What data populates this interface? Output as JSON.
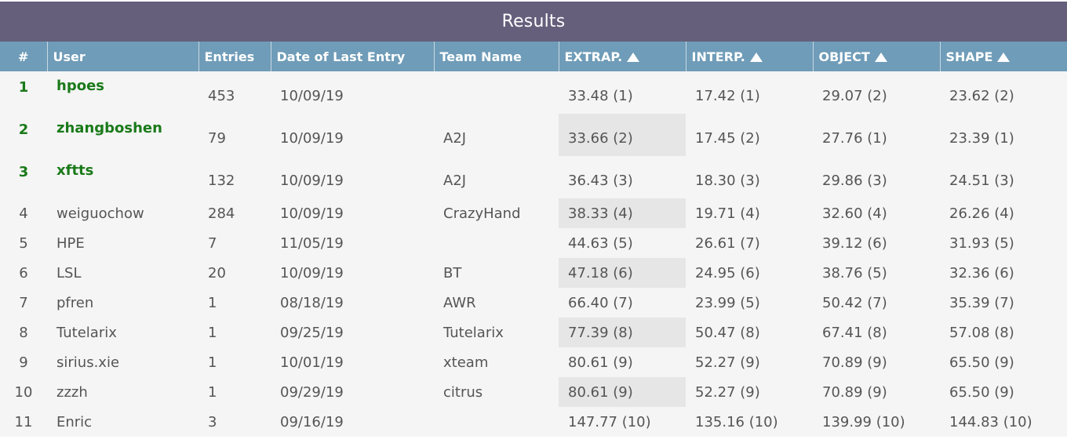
{
  "title": "Results",
  "columns": {
    "rank": "#",
    "user": "User",
    "entries": "Entries",
    "date": "Date of Last Entry",
    "team": "Team Name",
    "extrap": "EXTRAP.",
    "interp": "INTERP.",
    "object": "OBJECT",
    "shape": "SHAPE"
  },
  "rows": [
    {
      "rank": "1",
      "user": "hpoes",
      "entries": "453",
      "date": "10/09/19",
      "team": "",
      "extrap": "33.48 (1)",
      "interp": "17.42 (1)",
      "object": "29.07 (2)",
      "shape": "23.62 (2)",
      "top": true,
      "highlight_extrap": false
    },
    {
      "rank": "2",
      "user": "zhangboshen",
      "entries": "79",
      "date": "10/09/19",
      "team": "A2J",
      "extrap": "33.66 (2)",
      "interp": "17.45 (2)",
      "object": "27.76 (1)",
      "shape": "23.39 (1)",
      "top": true,
      "highlight_extrap": true
    },
    {
      "rank": "3",
      "user": "xftts",
      "entries": "132",
      "date": "10/09/19",
      "team": "A2J",
      "extrap": "36.43 (3)",
      "interp": "18.30 (3)",
      "object": "29.86 (3)",
      "shape": "24.51 (3)",
      "top": true,
      "highlight_extrap": false
    },
    {
      "rank": "4",
      "user": "weiguochow",
      "entries": "284",
      "date": "10/09/19",
      "team": "CrazyHand",
      "extrap": "38.33 (4)",
      "interp": "19.71 (4)",
      "object": "32.60 (4)",
      "shape": "26.26 (4)",
      "top": false,
      "highlight_extrap": true
    },
    {
      "rank": "5",
      "user": "HPE",
      "entries": "7",
      "date": "11/05/19",
      "team": "",
      "extrap": "44.63 (5)",
      "interp": "26.61 (7)",
      "object": "39.12 (6)",
      "shape": "31.93 (5)",
      "top": false,
      "highlight_extrap": false
    },
    {
      "rank": "6",
      "user": "LSL",
      "entries": "20",
      "date": "10/09/19",
      "team": "BT",
      "extrap": "47.18 (6)",
      "interp": "24.95 (6)",
      "object": "38.76 (5)",
      "shape": "32.36 (6)",
      "top": false,
      "highlight_extrap": true
    },
    {
      "rank": "7",
      "user": "pfren",
      "entries": "1",
      "date": "08/18/19",
      "team": "AWR",
      "extrap": "66.40 (7)",
      "interp": "23.99 (5)",
      "object": "50.42 (7)",
      "shape": "35.39 (7)",
      "top": false,
      "highlight_extrap": false
    },
    {
      "rank": "8",
      "user": "Tutelarix",
      "entries": "1",
      "date": "09/25/19",
      "team": "Tutelarix",
      "extrap": "77.39 (8)",
      "interp": "50.47 (8)",
      "object": "67.41 (8)",
      "shape": "57.08 (8)",
      "top": false,
      "highlight_extrap": true
    },
    {
      "rank": "9",
      "user": "sirius.xie",
      "entries": "1",
      "date": "10/01/19",
      "team": "xteam",
      "extrap": "80.61 (9)",
      "interp": "52.27 (9)",
      "object": "70.89 (9)",
      "shape": "65.50 (9)",
      "top": false,
      "highlight_extrap": false
    },
    {
      "rank": "10",
      "user": "zzzh",
      "entries": "1",
      "date": "09/29/19",
      "team": "citrus",
      "extrap": "80.61 (9)",
      "interp": "52.27 (9)",
      "object": "70.89 (9)",
      "shape": "65.50 (9)",
      "top": false,
      "highlight_extrap": true
    },
    {
      "rank": "11",
      "user": "Enric",
      "entries": "3",
      "date": "09/16/19",
      "team": "",
      "extrap": "147.77 (10)",
      "interp": "135.16 (10)",
      "object": "139.99 (10)",
      "shape": "144.83 (10)",
      "top": false,
      "highlight_extrap": false
    }
  ],
  "sort_icon": "triangle-up-icon",
  "colors": {
    "title_bar": "#655f7c",
    "header": "#6f9cb8",
    "top_user": "#1a7a1a",
    "highlight": "#e6e6e6"
  }
}
